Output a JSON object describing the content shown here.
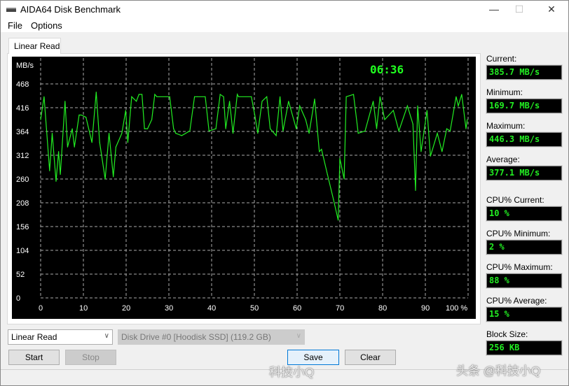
{
  "window": {
    "title": "AIDA64 Disk Benchmark",
    "minimize": "—",
    "maximize": "☐",
    "close": "✕"
  },
  "menu": [
    "File",
    "Options"
  ],
  "tab": "Linear Read",
  "chart_data": {
    "type": "line",
    "ylabel": "MB/s",
    "ylim": [
      0,
      468
    ],
    "xlim": [
      0,
      100
    ],
    "yticks": [
      "0",
      "52",
      "104",
      "156",
      "208",
      "260",
      "312",
      "364",
      "416",
      "468"
    ],
    "xticks": [
      "0",
      "10",
      "20",
      "30",
      "40",
      "50",
      "60",
      "70",
      "80",
      "90",
      "100 %"
    ],
    "grid": true,
    "elapsed": "06:36",
    "color": "#22ee22",
    "x": [
      0,
      0.8,
      2.1,
      2.7,
      3.6,
      4.2,
      4.6,
      5.7,
      6.3,
      7.4,
      7.9,
      9,
      9.5,
      10.6,
      12,
      13,
      13.8,
      15.1,
      16,
      17,
      17.6,
      19,
      19.9,
      20.4,
      21.3,
      22.4,
      23,
      23.7,
      24.3,
      25,
      26,
      26.7,
      27.2,
      30.2,
      31.1,
      31.6,
      33,
      34.9,
      36,
      36.6,
      38.5,
      39.4,
      41,
      42,
      42.8,
      43.3,
      44.2,
      45,
      46,
      46.3,
      49.3,
      50.1,
      50.8,
      51.8,
      52.9,
      53.7,
      55.1,
      56,
      56.7,
      58,
      59.8,
      60.6,
      62,
      62.8,
      64.1,
      65.2,
      65.7,
      67.1,
      68.5,
      69.6,
      70,
      71,
      71.5,
      73.2,
      74.3,
      75.9,
      77.8,
      78.6,
      79.4,
      80.5,
      82.5,
      83.8,
      85.8,
      87.1,
      87.7,
      88.2,
      89,
      90.4,
      91.2,
      92.8,
      93.9,
      95,
      95.8,
      97.2,
      97.7,
      98.5,
      99.5,
      99.8
    ],
    "y": [
      390,
      440,
      278,
      360,
      255,
      320,
      270,
      430,
      330,
      370,
      330,
      400,
      400,
      395,
      340,
      450,
      340,
      260,
      360,
      265,
      330,
      360,
      410,
      340,
      440,
      430,
      445,
      445,
      370,
      370,
      390,
      445,
      440,
      440,
      370,
      360,
      355,
      365,
      440,
      440,
      440,
      365,
      370,
      445,
      440,
      370,
      430,
      360,
      445,
      440,
      440,
      400,
      360,
      430,
      440,
      370,
      355,
      440,
      365,
      430,
      370,
      420,
      390,
      360,
      435,
      320,
      325,
      270,
      215,
      170,
      305,
      260,
      440,
      445,
      360,
      365,
      430,
      370,
      440,
      390,
      410,
      365,
      420,
      380,
      235,
      420,
      320,
      410,
      310,
      360,
      320,
      370,
      365,
      440,
      420,
      445,
      370,
      390
    ]
  },
  "stats": [
    {
      "label": "Current:",
      "value": "385.7 MB/s"
    },
    {
      "label": "Minimum:",
      "value": "169.7 MB/s"
    },
    {
      "label": "Maximum:",
      "value": "446.3 MB/s"
    },
    {
      "label": "Average:",
      "value": "377.1 MB/s"
    },
    {
      "label": "CPU% Current:",
      "value": "10 %"
    },
    {
      "label": "CPU% Minimum:",
      "value": "2 %"
    },
    {
      "label": "CPU% Maximum:",
      "value": "88 %"
    },
    {
      "label": "CPU% Average:",
      "value": "15 %"
    },
    {
      "label": "Block Size:",
      "value": "256 KB"
    }
  ],
  "controls": {
    "mode": "Linear Read",
    "drive": "Disk Drive #0  [Hoodisk SSD]  (119.2 GB)",
    "start": "Start",
    "stop": "Stop",
    "save": "Save",
    "clear": "Clear"
  },
  "watermarks": [
    "科技小Q",
    "头条 @科技小Q"
  ]
}
